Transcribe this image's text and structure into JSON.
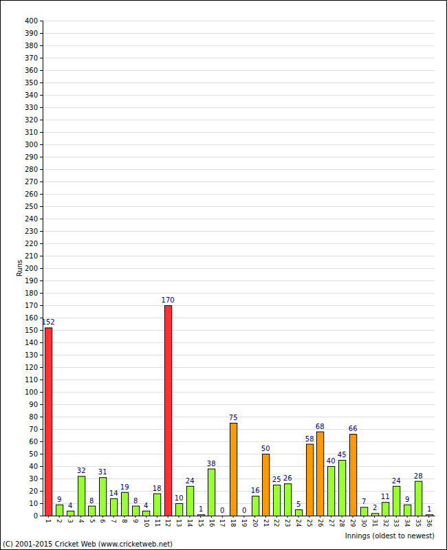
{
  "chart_data": {
    "type": "bar",
    "x_label": "Innings (oldest to newest)",
    "y_label": "Runs",
    "annotations": [
      "(C) 2001-2015 Cricket Web (www.cricketweb.net)"
    ],
    "categories": [
      "1",
      "2",
      "3",
      "4",
      "5",
      "6",
      "7",
      "8",
      "9",
      "10",
      "11",
      "12",
      "13",
      "14",
      "15",
      "16",
      "17",
      "18",
      "19",
      "20",
      "21",
      "22",
      "23",
      "24",
      "25",
      "26",
      "27",
      "28",
      "29",
      "30",
      "31",
      "32",
      "33",
      "34",
      "35",
      "36"
    ],
    "values": [
      152,
      9,
      4,
      32,
      8,
      31,
      14,
      19,
      8,
      4,
      18,
      170,
      10,
      24,
      1,
      38,
      0,
      75,
      0,
      16,
      50,
      25,
      26,
      5,
      58,
      68,
      40,
      45,
      66,
      7,
      2,
      11,
      24,
      9,
      28,
      1
    ],
    "colors": [
      "#ff3333",
      "#99ff33",
      "#99ff33",
      "#99ff33",
      "#99ff33",
      "#99ff33",
      "#99ff33",
      "#99ff33",
      "#99ff33",
      "#99ff33",
      "#99ff33",
      "#ff3333",
      "#99ff33",
      "#99ff33",
      "#99ff33",
      "#99ff33",
      "#99ff33",
      "#ff9900",
      "#99ff33",
      "#99ff33",
      "#ff9900",
      "#99ff33",
      "#99ff33",
      "#99ff33",
      "#ff9900",
      "#ff9900",
      "#99ff33",
      "#99ff33",
      "#ff9900",
      "#99ff33",
      "#99ff33",
      "#99ff33",
      "#99ff33",
      "#99ff33",
      "#99ff33",
      "#99ff33"
    ],
    "ylim": [
      0,
      400
    ],
    "yticks": [
      0,
      10,
      20,
      30,
      40,
      50,
      60,
      70,
      80,
      90,
      100,
      110,
      120,
      130,
      140,
      150,
      160,
      170,
      180,
      190,
      200,
      210,
      220,
      230,
      240,
      250,
      260,
      270,
      280,
      290,
      300,
      310,
      320,
      330,
      340,
      350,
      360,
      370,
      380,
      390,
      400
    ],
    "grid": true,
    "data_labels": true
  }
}
